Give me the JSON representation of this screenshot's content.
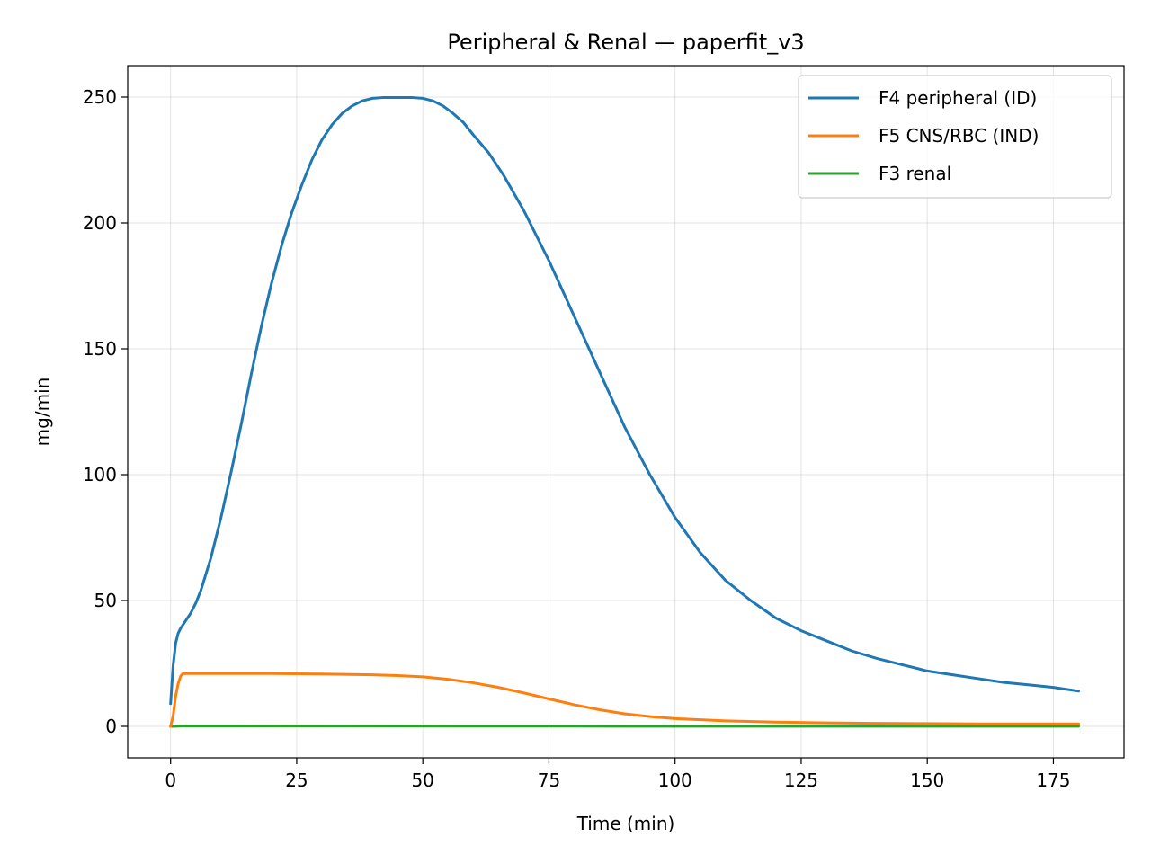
{
  "chart_data": {
    "type": "line",
    "title": "Peripheral & Renal — paperfit_v3",
    "xlabel": "Time (min)",
    "ylabel": "mg/min",
    "xlim": [
      -8.5,
      189
    ],
    "ylim": [
      -12.5,
      262.5
    ],
    "xticks": [
      0,
      25,
      50,
      75,
      100,
      125,
      150,
      175
    ],
    "yticks": [
      0,
      50,
      100,
      150,
      200,
      250
    ],
    "grid": true,
    "legend_position": "top-right",
    "series": [
      {
        "name": "F4 peripheral (ID)",
        "color": "#1f77b4",
        "x": [
          0,
          0.5,
          1,
          1.5,
          2,
          3,
          4,
          5,
          6,
          8,
          10,
          12,
          14,
          16,
          18,
          20,
          22,
          24,
          26,
          28,
          30,
          32,
          34,
          36,
          38,
          40,
          42,
          44,
          46,
          48,
          50,
          52,
          54,
          56,
          58,
          60,
          63,
          66,
          70,
          75,
          80,
          85,
          90,
          95,
          100,
          105,
          110,
          115,
          120,
          125,
          130,
          135,
          140,
          145,
          150,
          155,
          160,
          165,
          170,
          175,
          180
        ],
        "y": [
          9,
          24,
          33,
          37,
          39,
          42,
          45,
          49,
          54,
          67,
          83,
          101,
          120,
          140,
          159,
          176,
          191,
          204,
          215,
          225,
          233,
          239,
          243.5,
          246.5,
          248.5,
          249.5,
          249.8,
          249.8,
          249.8,
          249.8,
          249.5,
          248.5,
          246.5,
          243.5,
          240,
          235,
          228,
          219,
          205,
          185,
          163,
          141,
          119,
          100,
          83,
          69,
          58,
          50,
          43,
          38,
          34,
          30,
          27,
          24.5,
          22,
          20.5,
          19,
          17.5,
          16.5,
          15.5,
          14
        ]
      },
      {
        "name": "F5 CNS/RBC (IND)",
        "color": "#ff7f0e",
        "x": [
          0,
          0.5,
          1,
          1.5,
          2,
          2.5,
          3,
          5,
          10,
          20,
          30,
          40,
          45,
          50,
          55,
          60,
          65,
          70,
          75,
          80,
          85,
          90,
          95,
          100,
          110,
          120,
          130,
          140,
          150,
          160,
          170,
          180
        ],
        "y": [
          0,
          4,
          12,
          17,
          20,
          21,
          21,
          21,
          21,
          21,
          20.8,
          20.5,
          20.2,
          19.7,
          18.7,
          17.3,
          15.5,
          13.3,
          10.9,
          8.6,
          6.6,
          5,
          3.9,
          3.1,
          2.2,
          1.7,
          1.4,
          1.2,
          1.1,
          1,
          1,
          1
        ]
      },
      {
        "name": "F3 renal",
        "color": "#2ca02c",
        "x": [
          0,
          1,
          2,
          3,
          10,
          30,
          60,
          90,
          120,
          150,
          180
        ],
        "y": [
          0,
          0.05,
          0.15,
          0.2,
          0.2,
          0.15,
          0.1,
          0.05,
          0.05,
          0.05,
          0.05
        ]
      }
    ]
  }
}
